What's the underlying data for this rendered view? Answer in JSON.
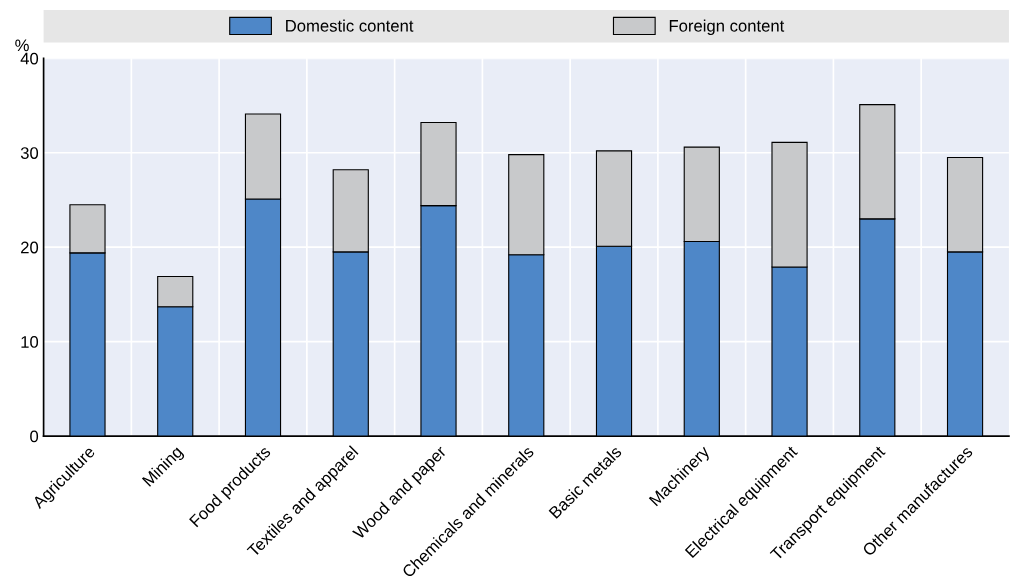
{
  "chart_data": {
    "type": "bar",
    "stacked": true,
    "ylabel": "%",
    "categories": [
      "Agriculture",
      "Mining",
      "Food products",
      "Textiles and apparel",
      "Wood and paper",
      "Chemicals and minerals",
      "Basic metals",
      "Machinery",
      "Electrical equipment",
      "Transport equipment",
      "Other manufactures"
    ],
    "series": [
      {
        "name": "Domestic content",
        "color": "#4e87c8",
        "values": [
          19.4,
          13.7,
          25.1,
          19.5,
          24.4,
          19.2,
          20.1,
          20.6,
          17.9,
          23.0,
          19.5
        ]
      },
      {
        "name": "Foreign content",
        "color": "#c8c9cb",
        "values": [
          5.1,
          3.2,
          9.0,
          8.7,
          8.8,
          10.6,
          10.1,
          10.0,
          13.2,
          12.1,
          10.0
        ]
      }
    ],
    "ylim": [
      0,
      40
    ],
    "yticks": [
      0,
      10,
      20,
      30,
      40
    ],
    "grid": true,
    "legend": "top"
  }
}
